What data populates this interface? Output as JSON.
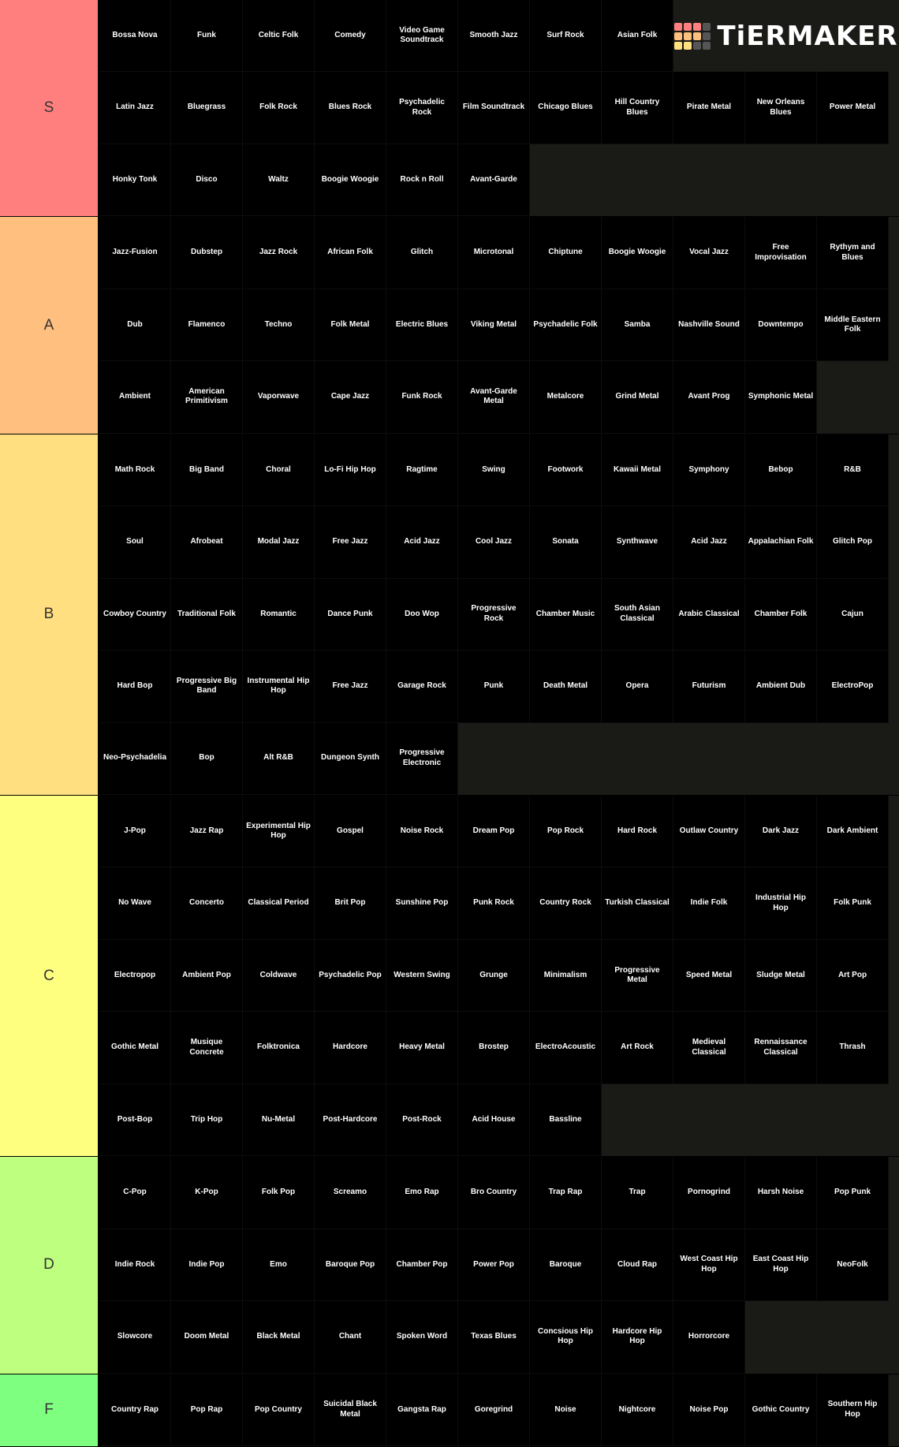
{
  "logo": "TiERMAKER",
  "tiers": [
    {
      "label": "S",
      "color": "#ff7f7f",
      "rows": [
        [
          "Bossa Nova",
          "Funk",
          "Celtic Folk",
          "Comedy",
          "Video Game Soundtrack",
          "Smooth Jazz",
          "Surf Rock",
          "Asian Folk"
        ],
        [
          "Latin Jazz",
          "Bluegrass",
          "Folk Rock",
          "Blues Rock",
          "Psychadelic Rock",
          "Film Soundtrack",
          "Chicago Blues",
          "Hill Country Blues",
          "Pirate Metal",
          "New Orleans Blues",
          "Power Metal"
        ],
        [
          "Honky Tonk",
          "Disco",
          "Waltz",
          "Boogie Woogie",
          "Rock n Roll",
          "Avant-Garde"
        ]
      ]
    },
    {
      "label": "A",
      "color": "#ffbf7f",
      "rows": [
        [
          "Jazz-Fusion",
          "Dubstep",
          "Jazz Rock",
          "African Folk",
          "Glitch",
          "Microtonal",
          "Chiptune",
          "Boogie Woogie",
          "Vocal Jazz",
          "Free Improvisation",
          "Rythym and Blues"
        ],
        [
          "Dub",
          "Flamenco",
          "Techno",
          "Folk Metal",
          "Electric Blues",
          "Viking Metal",
          "Psychadelic Folk",
          "Samba",
          "Nashville Sound",
          "Downtempo",
          "Middle Eastern Folk"
        ],
        [
          "Ambient",
          "American Primitivism",
          "Vaporwave",
          "Cape Jazz",
          "Funk Rock",
          "Avant-Garde Metal",
          "Metalcore",
          "Grind Metal",
          "Avant Prog",
          "Symphonic Metal"
        ]
      ]
    },
    {
      "label": "B",
      "color": "#ffdf7f",
      "rows": [
        [
          "Math Rock",
          "Big Band",
          "Choral",
          "Lo-Fi Hip Hop",
          "Ragtime",
          "Swing",
          "Footwork",
          "Kawaii Metal",
          "Symphony",
          "Bebop",
          "R&B"
        ],
        [
          "Soul",
          "Afrobeat",
          "Modal Jazz",
          "Free Jazz",
          "Acid Jazz",
          "Cool Jazz",
          "Sonata",
          "Synthwave",
          "Acid Jazz",
          "Appalachian Folk",
          "Glitch Pop"
        ],
        [
          "Cowboy Country",
          "Traditional Folk",
          "Romantic",
          "Dance Punk",
          "Doo Wop",
          "Progressive Rock",
          "Chamber Music",
          "South Asian Classical",
          "Arabic Classical",
          "Chamber Folk",
          "Cajun"
        ],
        [
          "Hard Bop",
          "Progressive Big Band",
          "Instrumental Hip Hop",
          "Free Jazz",
          "Garage Rock",
          "Punk",
          "Death Metal",
          "Opera",
          "Futurism",
          "Ambient Dub",
          "ElectroPop"
        ],
        [
          "Neo-Psychadelia",
          "Bop",
          "Alt R&B",
          "Dungeon Synth",
          "Progressive Electronic"
        ]
      ]
    },
    {
      "label": "C",
      "color": "#ffff7f",
      "rows": [
        [
          "J-Pop",
          "Jazz Rap",
          "Experimental Hip Hop",
          "Gospel",
          "Noise Rock",
          "Dream Pop",
          "Pop Rock",
          "Hard Rock",
          "Outlaw Country",
          "Dark Jazz",
          "Dark Ambient"
        ],
        [
          "No Wave",
          "Concerto",
          "Classical Period",
          "Brit Pop",
          "Sunshine Pop",
          "Punk Rock",
          "Country Rock",
          "Turkish Classical",
          "Indie Folk",
          "Industrial Hip Hop",
          "Folk Punk"
        ],
        [
          "Electropop",
          "Ambient Pop",
          "Coldwave",
          "Psychadelic Pop",
          "Western Swing",
          "Grunge",
          "Minimalism",
          "Progressive Metal",
          "Speed Metal",
          "Sludge Metal",
          "Art Pop"
        ],
        [
          "Gothic Metal",
          "Musique Concrete",
          "Folktronica",
          "Hardcore",
          "Heavy Metal",
          "Brostep",
          "ElectroAcoustic",
          "Art Rock",
          "Medieval Classical",
          "Rennaissance Classical",
          "Thrash"
        ],
        [
          "Post-Bop",
          "Trip Hop",
          "Nu-Metal",
          "Post-Hardcore",
          "Post-Rock",
          "Acid House",
          "Bassline"
        ]
      ]
    },
    {
      "label": "D",
      "color": "#bfff7f",
      "rows": [
        [
          "C-Pop",
          "K-Pop",
          "Folk Pop",
          "Screamo",
          "Emo Rap",
          "Bro Country",
          "Trap Rap",
          "Trap",
          "Pornogrind",
          "Harsh Noise",
          "Pop Punk"
        ],
        [
          "Indie Rock",
          "Indie Pop",
          "Emo",
          "Baroque Pop",
          "Chamber Pop",
          "Power Pop",
          "Baroque",
          "Cloud Rap",
          "West Coast Hip Hop",
          "East Coast Hip Hop",
          "NeoFolk"
        ],
        [
          "Slowcore",
          "Doom Metal",
          "Black Metal",
          "Chant",
          "Spoken Word",
          "Texas Blues",
          "Concsious Hip Hop",
          "Hardcore Hip Hop",
          "Horrorcore"
        ]
      ]
    },
    {
      "label": "F",
      "color": "#7fff7f",
      "rows": [
        [
          "Country Rap",
          "Pop Rap",
          "Pop Country",
          "Suicidal Black Metal",
          "Gangsta Rap",
          "Goregrind",
          "Noise",
          "Nightcore",
          "Noise Pop",
          "Gothic Country",
          "Southern Hip Hop"
        ]
      ]
    }
  ]
}
